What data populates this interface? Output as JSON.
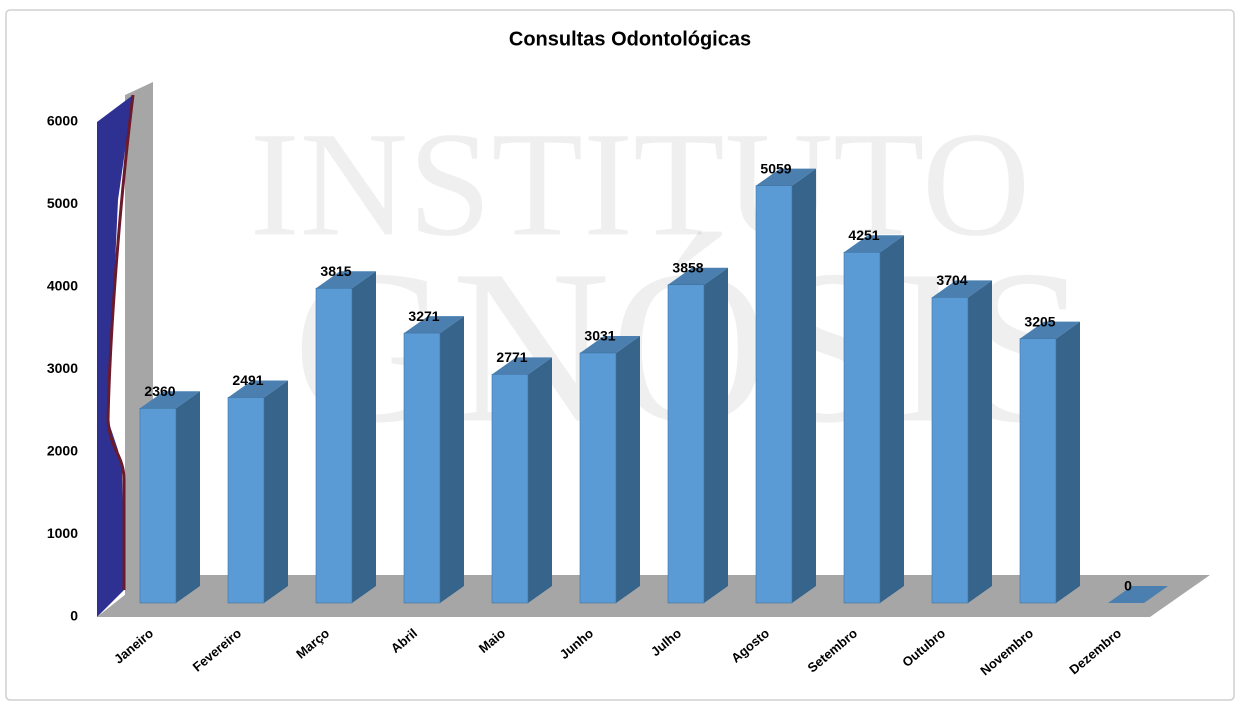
{
  "chart_data": {
    "type": "bar3d",
    "title": "Consultas Odontológicas",
    "watermark": [
      "INSTITUTO",
      "GNÓSIS"
    ],
    "categories": [
      "Janeiro",
      "Fevereiro",
      "Março",
      "Abril",
      "Maio",
      "Junho",
      "Julho",
      "Agosto",
      "Setembro",
      "Outubro",
      "Novembro",
      "Dezembro"
    ],
    "values": [
      2360,
      2491,
      3815,
      3271,
      2771,
      3031,
      3858,
      5059,
      4251,
      3704,
      3205,
      0
    ],
    "color": "#5b9bd5",
    "ylim": [
      0,
      6000
    ],
    "yticks": [
      0,
      1000,
      2000,
      3000,
      4000,
      5000,
      6000
    ],
    "grid": false
  }
}
